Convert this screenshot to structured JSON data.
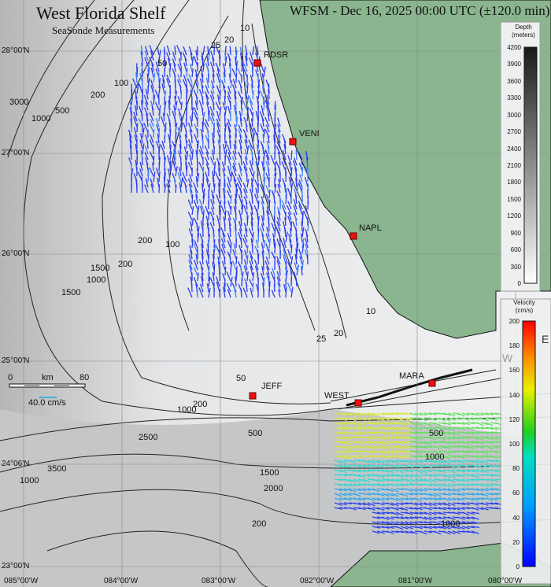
{
  "title": "West Florida Shelf",
  "subtitle": "SeaSonde Measurements",
  "header": "WFSM - Dec 16, 2025 00:00 UTC (±120.0 min)",
  "latitude_labels": [
    "28°00'N",
    "27°00'N",
    "26°00'N",
    "25°00'N",
    "24°06'N",
    "23°00'N"
  ],
  "longitude_labels": [
    "085°00'W",
    "084°00'W",
    "083°00'W",
    "082°00'W",
    "081°00'W",
    "080°00'W"
  ],
  "stations": [
    "RDSR",
    "VENI",
    "NAPL",
    "JEFF",
    "WEST",
    "MARA"
  ],
  "station_color": "#ee1111",
  "land_color": "#8ab58e",
  "contour_labels": [
    "10",
    "20",
    "25",
    "50",
    "100",
    "200",
    "500",
    "1000",
    "3000",
    "1500",
    "200",
    "100",
    "200",
    "1000",
    "1500",
    "25",
    "20",
    "10",
    "50",
    "200",
    "1000",
    "500",
    "2500",
    "3500",
    "1000",
    "1500",
    "2000",
    "200",
    "500",
    "1000",
    "1000"
  ],
  "scale_bar": {
    "left": "0",
    "unit": "km",
    "right": "80",
    "reference_vector": "40.0 cm/s"
  },
  "depth_colorbar": {
    "title_line1": "Depth",
    "title_line2": "(meters)",
    "ticks": [
      "4200",
      "3900",
      "3600",
      "3300",
      "3000",
      "2700",
      "2400",
      "2100",
      "1800",
      "1500",
      "1200",
      "900",
      "600",
      "300",
      "0"
    ]
  },
  "velocity_colorbar": {
    "title_line1": "Velocity",
    "title_line2": "(cm/s)",
    "ticks": [
      "200",
      "180",
      "160",
      "140",
      "120",
      "100",
      "80",
      "60",
      "40",
      "20",
      "0"
    ]
  },
  "compass": {
    "west": "W",
    "east": "E"
  }
}
